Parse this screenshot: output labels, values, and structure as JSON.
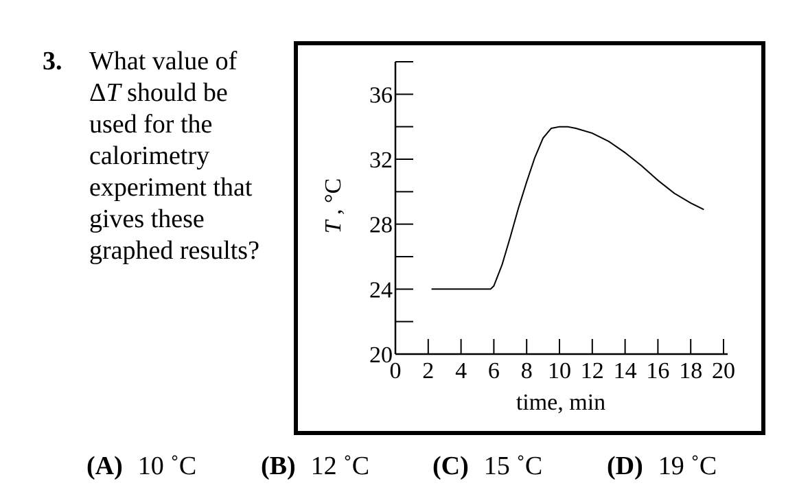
{
  "question": {
    "number": "3.",
    "lines": [
      "What value of",
      "ΔT should be",
      "used for the",
      "calorimetry",
      "experiment that",
      "gives these",
      "graphed results?"
    ]
  },
  "chart_data": {
    "type": "line",
    "xlabel": "time, min",
    "ylabel": "T, °C",
    "xlim": [
      0,
      20
    ],
    "ylim": [
      20,
      38
    ],
    "x_ticks": [
      0,
      2,
      4,
      6,
      8,
      10,
      12,
      14,
      16,
      18,
      20
    ],
    "y_ticks_labeled": [
      20,
      24,
      28,
      32,
      36
    ],
    "y_ticks_minor": [
      22,
      26,
      30,
      34,
      38
    ],
    "grid": false,
    "series": [
      {
        "points": [
          [
            2.2,
            24.0
          ],
          [
            3,
            24.0
          ],
          [
            4,
            24.0
          ],
          [
            5,
            24.0
          ],
          [
            5.8,
            24.0
          ],
          [
            6.0,
            24.2
          ],
          [
            6.5,
            25.5
          ],
          [
            7.0,
            27.2
          ],
          [
            7.5,
            29.0
          ],
          [
            8.0,
            30.6
          ],
          [
            8.5,
            32.1
          ],
          [
            9.0,
            33.3
          ],
          [
            9.5,
            33.9
          ],
          [
            10.0,
            34.0
          ],
          [
            10.5,
            34.0
          ],
          [
            11.0,
            33.9
          ],
          [
            12.0,
            33.6
          ],
          [
            13.0,
            33.1
          ],
          [
            14.0,
            32.4
          ],
          [
            15.0,
            31.6
          ],
          [
            16.0,
            30.7
          ],
          [
            17.0,
            29.9
          ],
          [
            18.0,
            29.3
          ],
          [
            18.8,
            28.9
          ]
        ]
      }
    ]
  },
  "answers": [
    {
      "letter": "(A)",
      "text": "10 ˚C"
    },
    {
      "letter": "(B)",
      "text": "12 ˚C"
    },
    {
      "letter": "(C)",
      "text": "15 ˚C"
    },
    {
      "letter": "(D)",
      "text": "19 ˚C"
    }
  ]
}
